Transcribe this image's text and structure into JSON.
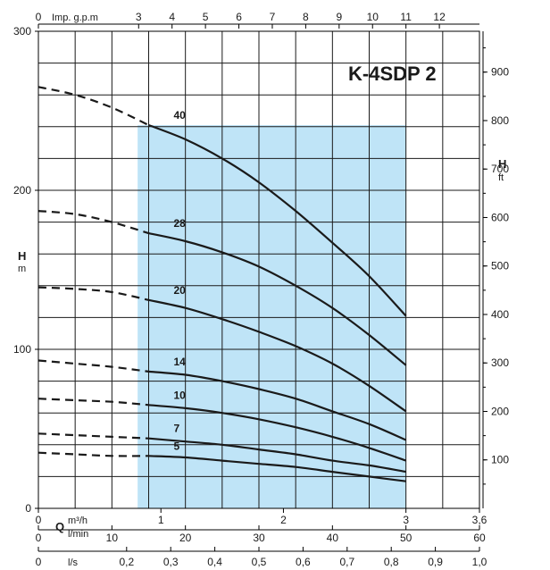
{
  "chart_data": {
    "type": "line",
    "title": "K-4SDP 2",
    "xlabel": "Q",
    "ylabel": "H",
    "xlim": [
      0,
      3.6
    ],
    "ylim": [
      0,
      300
    ],
    "operating_range": [
      0.9,
      3.0
    ],
    "series": [
      {
        "name": "40",
        "dashed": {
          "x": [
            0,
            0.3,
            0.6,
            0.9
          ],
          "y": [
            265,
            260,
            252,
            241
          ]
        },
        "solid": {
          "x": [
            0.9,
            1.2,
            1.5,
            1.8,
            2.1,
            2.4,
            2.7,
            3.0
          ],
          "y": [
            241,
            232,
            220,
            205,
            187,
            167,
            146,
            121
          ]
        }
      },
      {
        "name": "28",
        "dashed": {
          "x": [
            0,
            0.3,
            0.6,
            0.9
          ],
          "y": [
            187,
            185,
            180,
            173
          ]
        },
        "solid": {
          "x": [
            0.9,
            1.2,
            1.5,
            1.8,
            2.1,
            2.4,
            2.7,
            3.0
          ],
          "y": [
            173,
            168,
            161,
            152,
            140,
            126,
            109,
            90
          ]
        }
      },
      {
        "name": "20",
        "dashed": {
          "x": [
            0,
            0.3,
            0.6,
            0.9
          ],
          "y": [
            139,
            138,
            136,
            131
          ]
        },
        "solid": {
          "x": [
            0.9,
            1.2,
            1.5,
            1.8,
            2.1,
            2.4,
            2.7,
            3.0
          ],
          "y": [
            131,
            126,
            119,
            111,
            102,
            91,
            77,
            61
          ]
        }
      },
      {
        "name": "14",
        "dashed": {
          "x": [
            0,
            0.3,
            0.6,
            0.9
          ],
          "y": [
            93,
            91,
            89,
            86
          ]
        },
        "solid": {
          "x": [
            0.9,
            1.2,
            1.5,
            1.8,
            2.1,
            2.4,
            2.7,
            3.0
          ],
          "y": [
            86,
            84,
            80,
            75,
            69,
            61,
            53,
            43
          ]
        }
      },
      {
        "name": "10",
        "dashed": {
          "x": [
            0,
            0.3,
            0.6,
            0.9
          ],
          "y": [
            69,
            68,
            67,
            65
          ]
        },
        "solid": {
          "x": [
            0.9,
            1.2,
            1.5,
            1.8,
            2.1,
            2.4,
            2.7,
            3.0
          ],
          "y": [
            65,
            63,
            60,
            56,
            51,
            45,
            38,
            30
          ]
        }
      },
      {
        "name": "7",
        "dashed": {
          "x": [
            0,
            0.3,
            0.6,
            0.9
          ],
          "y": [
            47,
            46,
            45,
            44
          ]
        },
        "solid": {
          "x": [
            0.9,
            1.2,
            1.5,
            1.8,
            2.1,
            2.4,
            2.7,
            3.0
          ],
          "y": [
            44,
            42,
            40,
            37,
            34,
            30,
            27,
            23
          ]
        }
      },
      {
        "name": "5",
        "dashed": {
          "x": [
            0,
            0.3,
            0.6,
            0.9
          ],
          "y": [
            35,
            34,
            33,
            33
          ]
        },
        "solid": {
          "x": [
            0.9,
            1.2,
            1.5,
            1.8,
            2.1,
            2.4,
            2.7,
            3.0
          ],
          "y": [
            33,
            32,
            30,
            28,
            26,
            23,
            20,
            17
          ]
        }
      }
    ],
    "axes": {
      "left": {
        "label": "H",
        "unit": "m",
        "ticks": [
          0,
          100,
          200,
          300
        ]
      },
      "right": {
        "label": "H",
        "unit": "ft",
        "ticks": [
          100,
          200,
          300,
          400,
          500,
          600,
          700,
          800,
          900
        ]
      },
      "top": {
        "label": "Imp. g.p.m",
        "ticks": [
          0,
          3,
          4,
          5,
          6,
          7,
          8,
          9,
          10,
          11,
          12
        ]
      },
      "bottom_m3h": {
        "label": "Q",
        "unit": "m³/h",
        "ticks": [
          0,
          1,
          2,
          3,
          3.6
        ],
        "tick_labels": [
          "0",
          "1",
          "2",
          "3",
          "3,6"
        ]
      },
      "bottom_lmin": {
        "unit": "l/min",
        "ticks": [
          0,
          10,
          20,
          30,
          40,
          50,
          60
        ]
      },
      "bottom_ls": {
        "unit": "l/s",
        "ticks": [
          0,
          0.2,
          0.3,
          0.4,
          0.5,
          0.6,
          0.7,
          0.8,
          0.9,
          1.0
        ],
        "tick_labels": [
          "0",
          "0,2",
          "0,3",
          "0,4",
          "0,5",
          "0,6",
          "0,7",
          "0,8",
          "0,9",
          "1,0"
        ]
      }
    },
    "colors": {
      "operating_fill": "#bfe4f7",
      "line": "#1a1a1a",
      "grid": "#1a1a1a"
    }
  }
}
